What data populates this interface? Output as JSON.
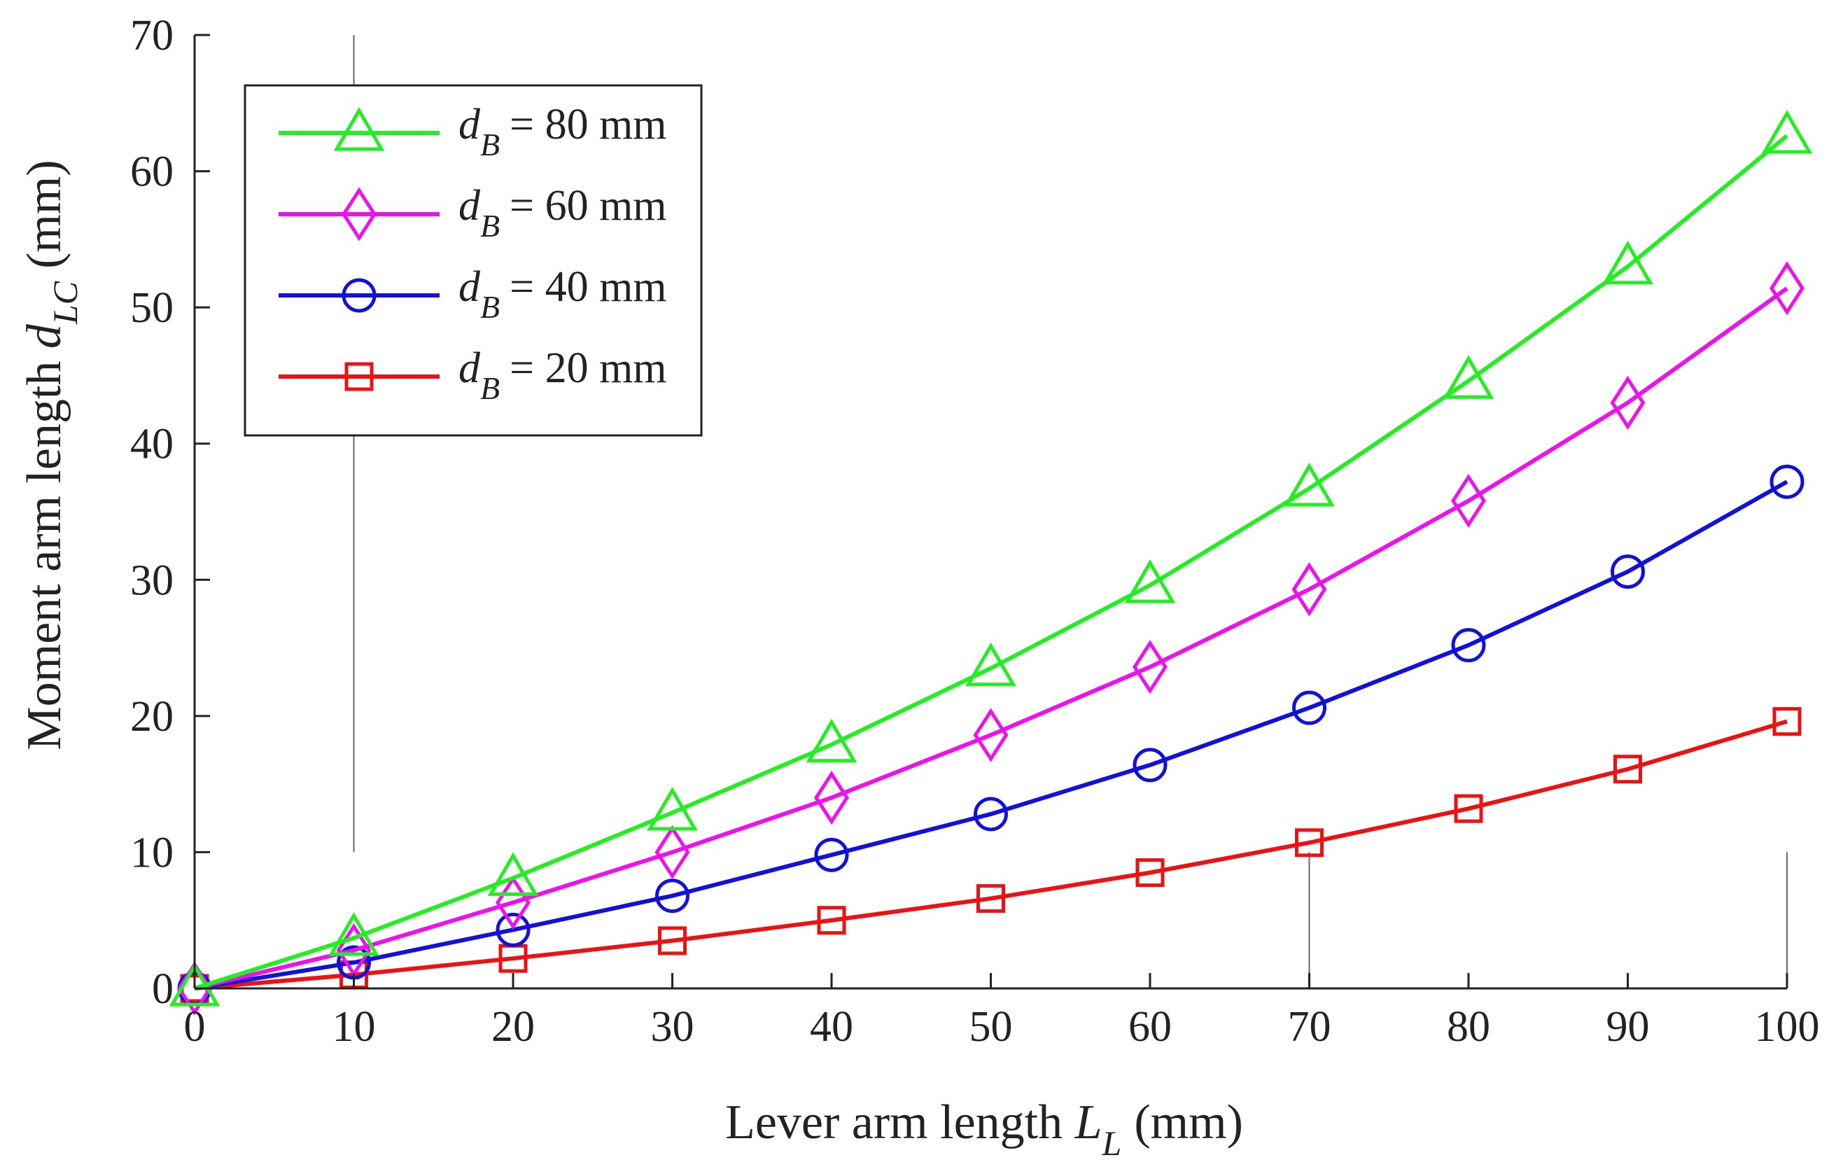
{
  "chart_data": {
    "type": "line",
    "title": "",
    "xlabel": "Lever arm length",
    "xlabel_symbol": "L",
    "xlabel_sub": "L",
    "xlabel_unit": "(mm)",
    "ylabel": "Moment arm length",
    "ylabel_symbol": "d",
    "ylabel_sub": "LC",
    "ylabel_unit": "(mm)",
    "xlim": [
      0,
      100
    ],
    "ylim": [
      0,
      70
    ],
    "xticks": [
      0,
      10,
      20,
      30,
      40,
      50,
      60,
      70,
      80,
      90,
      100
    ],
    "yticks": [
      0,
      10,
      20,
      30,
      40,
      50,
      60,
      70
    ],
    "x": [
      0,
      10,
      20,
      30,
      40,
      50,
      60,
      70,
      80,
      90,
      100
    ],
    "legend_position": "top-left",
    "series": [
      {
        "name": "d_B = 80 mm",
        "sym": "d",
        "sub": "B",
        "value_text": "= 80 mm",
        "color": "#22ee22",
        "marker": "triangle",
        "values": [
          0,
          3.7,
          8.1,
          12.9,
          17.9,
          23.5,
          29.6,
          36.7,
          44.6,
          53.0,
          62.6
        ]
      },
      {
        "name": "d_B = 60 mm",
        "sym": "d",
        "sub": "B",
        "value_text": "= 60 mm",
        "color": "#ee11ee",
        "marker": "diamond",
        "values": [
          0,
          2.8,
          6.3,
          10.0,
          14.0,
          18.6,
          23.6,
          29.3,
          35.8,
          43.0,
          51.4
        ]
      },
      {
        "name": "d_B = 40 mm",
        "sym": "d",
        "sub": "B",
        "value_text": "= 40 mm",
        "color": "#1111dd",
        "marker": "circle",
        "values": [
          0,
          1.9,
          4.3,
          6.8,
          9.8,
          12.8,
          16.4,
          20.6,
          25.2,
          30.6,
          37.2
        ]
      },
      {
        "name": "d_B = 20 mm",
        "sym": "d",
        "sub": "B",
        "value_text": "= 20 mm",
        "color": "#ee1111",
        "marker": "square",
        "values": [
          0,
          1.0,
          2.2,
          3.5,
          5.0,
          6.6,
          8.5,
          10.7,
          13.2,
          16.1,
          19.6
        ]
      }
    ]
  }
}
